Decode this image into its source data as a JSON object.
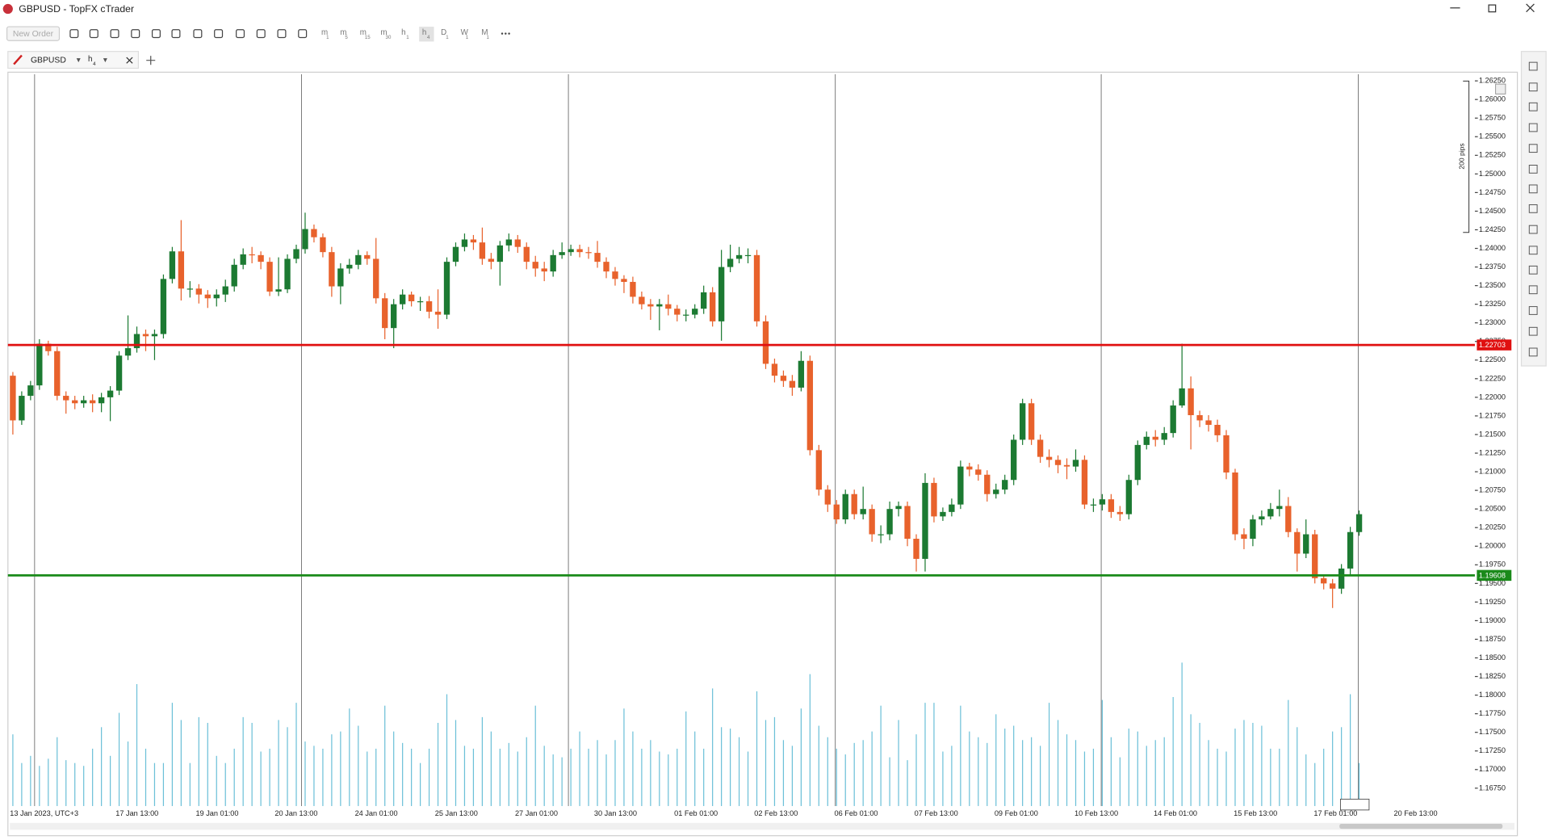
{
  "window": {
    "title": "GBPUSD - TopFX cTrader"
  },
  "toolbar": {
    "new_order": "New Order",
    "timeframes": [
      {
        "label": "m",
        "sub": "1"
      },
      {
        "label": "m",
        "sub": "5"
      },
      {
        "label": "m",
        "sub": "15"
      },
      {
        "label": "m",
        "sub": "30"
      },
      {
        "label": "h",
        "sub": "1"
      },
      {
        "label": "h",
        "sub": "4"
      },
      {
        "label": "D",
        "sub": "1"
      },
      {
        "label": "W",
        "sub": "1"
      },
      {
        "label": "M",
        "sub": "1"
      }
    ]
  },
  "tab": {
    "symbol": "GBPUSD",
    "timeframe": "h",
    "timeframe_sub": "4"
  },
  "chart_data": {
    "type": "candlestick",
    "ruler_label": "200 pips",
    "colors": {
      "up": "#1c7a32",
      "down": "#e8622c",
      "volume": "#6cc0d8"
    },
    "ylim": [
      1.1651,
      1.2634
    ],
    "yticks": [
      {
        "value": 1.2625,
        "label": "1.26250"
      },
      {
        "value": 1.26,
        "label": "1.26000"
      },
      {
        "value": 1.2575,
        "label": "1.25750"
      },
      {
        "value": 1.255,
        "label": "1.25500"
      },
      {
        "value": 1.2525,
        "label": "1.25250"
      },
      {
        "value": 1.25,
        "label": "1.25000"
      },
      {
        "value": 1.2475,
        "label": "1.24750"
      },
      {
        "value": 1.245,
        "label": "1.24500"
      },
      {
        "value": 1.2425,
        "label": "1.24250"
      },
      {
        "value": 1.24,
        "label": "1.24000"
      },
      {
        "value": 1.2375,
        "label": "1.23750"
      },
      {
        "value": 1.235,
        "label": "1.23500"
      },
      {
        "value": 1.2325,
        "label": "1.23250"
      },
      {
        "value": 1.23,
        "label": "1.23000"
      },
      {
        "value": 1.2275,
        "label": "1.22750"
      },
      {
        "value": 1.225,
        "label": "1.22500"
      },
      {
        "value": 1.2225,
        "label": "1.22250"
      },
      {
        "value": 1.22,
        "label": "1.22000"
      },
      {
        "value": 1.2175,
        "label": "1.21750"
      },
      {
        "value": 1.215,
        "label": "1.21500"
      },
      {
        "value": 1.2125,
        "label": "1.21250"
      },
      {
        "value": 1.21,
        "label": "1.21000"
      },
      {
        "value": 1.2075,
        "label": "1.20750"
      },
      {
        "value": 1.205,
        "label": "1.20500"
      },
      {
        "value": 1.2025,
        "label": "1.20250"
      },
      {
        "value": 1.2,
        "label": "1.20000"
      },
      {
        "value": 1.1975,
        "label": "1.19750"
      },
      {
        "value": 1.195,
        "label": "1.19500"
      },
      {
        "value": 1.1925,
        "label": "1.19250"
      },
      {
        "value": 1.19,
        "label": "1.19000"
      },
      {
        "value": 1.1875,
        "label": "1.18750"
      },
      {
        "value": 1.185,
        "label": "1.18500"
      },
      {
        "value": 1.1825,
        "label": "1.18250"
      },
      {
        "value": 1.18,
        "label": "1.18000"
      },
      {
        "value": 1.1775,
        "label": "1.17750"
      },
      {
        "value": 1.175,
        "label": "1.17500"
      },
      {
        "value": 1.1725,
        "label": "1.17250"
      },
      {
        "value": 1.17,
        "label": "1.17000"
      },
      {
        "value": 1.1675,
        "label": "1.16750"
      }
    ],
    "x_labels": [
      "13 Jan 2023, UTC+3",
      "17 Jan 13:00",
      "19 Jan 01:00",
      "20 Jan 13:00",
      "24 Jan 01:00",
      "25 Jan 13:00",
      "27 Jan 01:00",
      "30 Jan 13:00",
      "01 Feb 01:00",
      "02 Feb 13:00",
      "06 Feb 01:00",
      "07 Feb 13:00",
      "09 Feb 01:00",
      "10 Feb 13:00",
      "14 Feb 01:00",
      "15 Feb 13:00",
      "17 Feb 01:00",
      "20 Feb 13:00"
    ],
    "horizontal_lines": [
      {
        "value": 1.22703,
        "color": "#e01010"
      },
      {
        "value": 1.19608,
        "color": "#1a8a1a"
      }
    ],
    "candles": [
      [
        1.2229,
        1.2234,
        1.215,
        1.2169
      ],
      [
        1.2169,
        1.2208,
        1.2163,
        1.2202
      ],
      [
        1.2202,
        1.2222,
        1.2196,
        1.2216
      ],
      [
        1.2216,
        1.2278,
        1.221,
        1.2272
      ],
      [
        1.2272,
        1.2276,
        1.2256,
        1.2262
      ],
      [
        1.2262,
        1.2268,
        1.2196,
        1.2202
      ],
      [
        1.2202,
        1.2208,
        1.2178,
        1.2196
      ],
      [
        1.2196,
        1.2202,
        1.2184,
        1.2192
      ],
      [
        1.2192,
        1.2202,
        1.2186,
        1.2196
      ],
      [
        1.2196,
        1.2204,
        1.218,
        1.2192
      ],
      [
        1.2192,
        1.2206,
        1.218,
        1.22
      ],
      [
        1.22,
        1.2215,
        1.2168,
        1.2209
      ],
      [
        1.2209,
        1.2262,
        1.2203,
        1.2256
      ],
      [
        1.2256,
        1.231,
        1.225,
        1.2266
      ],
      [
        1.2266,
        1.2295,
        1.226,
        1.2285
      ],
      [
        1.2285,
        1.2291,
        1.2262,
        1.2282
      ],
      [
        1.2282,
        1.2291,
        1.225,
        1.2285
      ],
      [
        1.2285,
        1.2365,
        1.2279,
        1.2359
      ],
      [
        1.2359,
        1.2402,
        1.2353,
        1.2396
      ],
      [
        1.2396,
        1.2438,
        1.233,
        1.2346
      ],
      [
        1.2346,
        1.2356,
        1.2334,
        1.2346
      ],
      [
        1.2346,
        1.2352,
        1.2326,
        1.2338
      ],
      [
        1.2338,
        1.2344,
        1.232,
        1.2333
      ],
      [
        1.2333,
        1.2345,
        1.2322,
        1.2338
      ],
      [
        1.2338,
        1.2358,
        1.2328,
        1.2349
      ],
      [
        1.2349,
        1.2386,
        1.2342,
        1.2378
      ],
      [
        1.2378,
        1.24,
        1.2372,
        1.2392
      ],
      [
        1.2392,
        1.2402,
        1.238,
        1.2391
      ],
      [
        1.2391,
        1.2396,
        1.2372,
        1.2382
      ],
      [
        1.2382,
        1.2388,
        1.2336,
        1.2342
      ],
      [
        1.2342,
        1.2388,
        1.2336,
        1.2345
      ],
      [
        1.2345,
        1.2392,
        1.234,
        1.2386
      ],
      [
        1.2386,
        1.2405,
        1.238,
        1.2399
      ],
      [
        1.2399,
        1.2448,
        1.2393,
        1.2426
      ],
      [
        1.2426,
        1.2432,
        1.2408,
        1.2415
      ],
      [
        1.2415,
        1.242,
        1.2388,
        1.2395
      ],
      [
        1.2395,
        1.2402,
        1.2335,
        1.2349
      ],
      [
        1.2349,
        1.238,
        1.2325,
        1.2373
      ],
      [
        1.2373,
        1.2386,
        1.2366,
        1.2378
      ],
      [
        1.2378,
        1.2398,
        1.2372,
        1.2391
      ],
      [
        1.2391,
        1.2396,
        1.2378,
        1.2386
      ],
      [
        1.2386,
        1.2414,
        1.2326,
        1.2333
      ],
      [
        1.2333,
        1.234,
        1.2278,
        1.2293
      ],
      [
        1.2293,
        1.2332,
        1.2266,
        1.2325
      ],
      [
        1.2325,
        1.2345,
        1.2318,
        1.2338
      ],
      [
        1.2338,
        1.2342,
        1.2322,
        1.2329
      ],
      [
        1.2329,
        1.2335,
        1.2316,
        1.2329
      ],
      [
        1.2329,
        1.2336,
        1.2306,
        1.2315
      ],
      [
        1.2315,
        1.2345,
        1.2292,
        1.2311
      ],
      [
        1.2311,
        1.2388,
        1.2305,
        1.2382
      ],
      [
        1.2382,
        1.2408,
        1.2376,
        1.2402
      ],
      [
        1.2402,
        1.242,
        1.2396,
        1.2412
      ],
      [
        1.2412,
        1.2418,
        1.2398,
        1.2408
      ],
      [
        1.2408,
        1.2428,
        1.2378,
        1.2386
      ],
      [
        1.2386,
        1.2394,
        1.2372,
        1.2382
      ],
      [
        1.2382,
        1.241,
        1.235,
        1.2404
      ],
      [
        1.2404,
        1.242,
        1.2396,
        1.2412
      ],
      [
        1.2412,
        1.2418,
        1.2394,
        1.2402
      ],
      [
        1.2402,
        1.2408,
        1.2372,
        1.2382
      ],
      [
        1.2382,
        1.239,
        1.2362,
        1.2373
      ],
      [
        1.2373,
        1.2382,
        1.2356,
        1.2369
      ],
      [
        1.2369,
        1.2398,
        1.2362,
        1.2391
      ],
      [
        1.2391,
        1.2408,
        1.2386,
        1.2395
      ],
      [
        1.2395,
        1.2405,
        1.239,
        1.2399
      ],
      [
        1.2399,
        1.2405,
        1.2388,
        1.2395
      ],
      [
        1.2395,
        1.2402,
        1.2386,
        1.2394
      ],
      [
        1.2394,
        1.241,
        1.2374,
        1.2382
      ],
      [
        1.2382,
        1.2388,
        1.236,
        1.2369
      ],
      [
        1.2369,
        1.2375,
        1.235,
        1.2359
      ],
      [
        1.2359,
        1.2364,
        1.234,
        1.2355
      ],
      [
        1.2355,
        1.2362,
        1.2326,
        1.2335
      ],
      [
        1.2335,
        1.2342,
        1.2318,
        1.2325
      ],
      [
        1.2325,
        1.2332,
        1.2304,
        1.2322
      ],
      [
        1.2322,
        1.2332,
        1.229,
        1.2325
      ],
      [
        1.2325,
        1.2338,
        1.231,
        1.2319
      ],
      [
        1.2319,
        1.2324,
        1.2302,
        1.2311
      ],
      [
        1.2311,
        1.2318,
        1.2302,
        1.2311
      ],
      [
        1.2311,
        1.2325,
        1.2306,
        1.2319
      ],
      [
        1.2319,
        1.235,
        1.2312,
        1.2341
      ],
      [
        1.2341,
        1.2348,
        1.2295,
        1.2302
      ],
      [
        1.2302,
        1.2398,
        1.2276,
        1.2375
      ],
      [
        1.2375,
        1.2405,
        1.2368,
        1.2386
      ],
      [
        1.2386,
        1.2402,
        1.238,
        1.2391
      ],
      [
        1.2391,
        1.24,
        1.238,
        1.2391
      ],
      [
        1.2391,
        1.2398,
        1.2295,
        1.2302
      ],
      [
        1.2302,
        1.231,
        1.2238,
        1.2245
      ],
      [
        1.2245,
        1.2252,
        1.222,
        1.2229
      ],
      [
        1.2229,
        1.2236,
        1.2214,
        1.2222
      ],
      [
        1.2222,
        1.223,
        1.2202,
        1.2213
      ],
      [
        1.2213,
        1.2262,
        1.2208,
        1.2249
      ],
      [
        1.2249,
        1.2256,
        1.2122,
        1.2129
      ],
      [
        1.2129,
        1.2136,
        1.2068,
        1.2076
      ],
      [
        1.2076,
        1.2082,
        1.2046,
        1.2056
      ],
      [
        1.2056,
        1.2062,
        1.203,
        1.2036
      ],
      [
        1.2036,
        1.2076,
        1.203,
        1.207
      ],
      [
        1.207,
        1.2076,
        1.2036,
        1.2043
      ],
      [
        1.2043,
        1.208,
        1.2036,
        1.205
      ],
      [
        1.205,
        1.2056,
        1.2006,
        1.2016
      ],
      [
        1.2016,
        1.2028,
        1.2004,
        1.2016
      ],
      [
        1.2016,
        1.206,
        1.2008,
        1.205
      ],
      [
        1.205,
        1.206,
        1.204,
        1.2054
      ],
      [
        1.2054,
        1.206,
        1.2,
        1.201
      ],
      [
        1.201,
        1.2016,
        1.1966,
        1.1983
      ],
      [
        1.1983,
        1.2098,
        1.1966,
        1.2085
      ],
      [
        1.2085,
        1.2092,
        1.2032,
        1.204
      ],
      [
        1.204,
        1.2052,
        1.2034,
        1.2046
      ],
      [
        1.2046,
        1.2064,
        1.204,
        1.2056
      ],
      [
        1.2056,
        1.2115,
        1.205,
        1.2107
      ],
      [
        1.2107,
        1.2112,
        1.2094,
        1.2103
      ],
      [
        1.2103,
        1.211,
        1.2088,
        1.2096
      ],
      [
        1.2096,
        1.2102,
        1.206,
        1.207
      ],
      [
        1.207,
        1.2084,
        1.2064,
        1.2076
      ],
      [
        1.2076,
        1.2096,
        1.207,
        1.2089
      ],
      [
        1.2089,
        1.215,
        1.2082,
        1.2143
      ],
      [
        1.2143,
        1.2198,
        1.2136,
        1.2192
      ],
      [
        1.2192,
        1.2198,
        1.2136,
        1.2143
      ],
      [
        1.2143,
        1.215,
        1.2112,
        1.212
      ],
      [
        1.212,
        1.213,
        1.2106,
        1.2116
      ],
      [
        1.2116,
        1.2122,
        1.2098,
        1.2109
      ],
      [
        1.2109,
        1.2118,
        1.209,
        1.2107
      ],
      [
        1.2107,
        1.213,
        1.21,
        1.2116
      ],
      [
        1.2116,
        1.2122,
        1.205,
        1.2056
      ],
      [
        1.2056,
        1.2064,
        1.2046,
        1.2056
      ],
      [
        1.2056,
        1.207,
        1.2048,
        1.2063
      ],
      [
        1.2063,
        1.207,
        1.2038,
        1.2046
      ],
      [
        1.2046,
        1.2054,
        1.2034,
        1.2043
      ],
      [
        1.2043,
        1.2096,
        1.2036,
        1.2089
      ],
      [
        1.2089,
        1.2142,
        1.2082,
        1.2136
      ],
      [
        1.2136,
        1.2154,
        1.213,
        1.2147
      ],
      [
        1.2147,
        1.2156,
        1.2134,
        1.2143
      ],
      [
        1.2143,
        1.216,
        1.2136,
        1.2152
      ],
      [
        1.2152,
        1.2196,
        1.2146,
        1.2189
      ],
      [
        1.2189,
        1.2272,
        1.2186,
        1.2212
      ],
      [
        1.2212,
        1.2228,
        1.213,
        1.2176
      ],
      [
        1.2176,
        1.2182,
        1.216,
        1.2169
      ],
      [
        1.2169,
        1.2176,
        1.2154,
        1.2163
      ],
      [
        1.2163,
        1.217,
        1.214,
        1.2149
      ],
      [
        1.2149,
        1.2156,
        1.209,
        1.2099
      ],
      [
        1.2099,
        1.2104,
        1.2008,
        1.2016
      ],
      [
        1.2016,
        1.2024,
        1.1996,
        1.201
      ],
      [
        1.201,
        1.2042,
        1.2,
        1.2036
      ],
      [
        1.2036,
        1.2048,
        1.2028,
        1.204
      ],
      [
        1.204,
        1.2058,
        1.2036,
        1.205
      ],
      [
        1.205,
        1.2076,
        1.204,
        1.2054
      ],
      [
        1.2054,
        1.2066,
        1.2012,
        1.2019
      ],
      [
        1.2019,
        1.2024,
        1.1966,
        1.199
      ],
      [
        1.199,
        1.2036,
        1.1984,
        1.2016
      ],
      [
        1.2016,
        1.2022,
        1.195,
        1.1957
      ],
      [
        1.1957,
        1.1962,
        1.1942,
        1.195
      ],
      [
        1.195,
        1.1956,
        1.1917,
        1.1943
      ],
      [
        1.1943,
        1.1976,
        1.1936,
        1.197
      ],
      [
        1.197,
        1.2026,
        1.1962,
        1.2019
      ],
      [
        1.2019,
        1.2048,
        1.2014,
        1.2043
      ]
    ],
    "volume_lim": [
      0,
      100
    ],
    "volume": [
      50,
      30,
      35,
      28,
      33,
      48,
      32,
      30,
      28,
      40,
      55,
      35,
      65,
      45,
      85,
      40,
      30,
      30,
      72,
      60,
      30,
      62,
      58,
      35,
      30,
      40,
      62,
      58,
      38,
      40,
      60,
      55,
      72,
      45,
      42,
      40,
      50,
      52,
      68,
      56,
      38,
      40,
      70,
      52,
      44,
      40,
      30,
      40,
      58,
      78,
      60,
      42,
      40,
      62,
      52,
      40,
      44,
      38,
      48,
      70,
      42,
      36,
      34,
      40,
      52,
      40,
      46,
      36,
      46,
      68,
      52,
      40,
      46,
      38,
      36,
      40,
      66,
      52,
      40,
      82,
      55,
      54,
      48,
      38,
      80,
      60,
      62,
      46,
      42,
      68,
      92,
      56,
      48,
      40,
      36,
      44,
      46,
      52,
      70,
      34,
      60,
      32,
      50,
      72,
      72,
      38,
      42,
      70,
      52,
      48,
      44,
      64,
      54,
      56,
      46,
      48,
      42,
      72,
      60,
      50,
      46,
      38,
      40,
      74,
      48,
      34,
      54,
      52,
      42,
      46,
      48,
      76,
      100,
      64,
      58,
      46,
      40,
      38,
      54,
      60,
      58,
      56,
      40,
      40,
      74,
      55,
      36,
      30,
      40,
      52,
      55,
      78,
      30
    ]
  }
}
